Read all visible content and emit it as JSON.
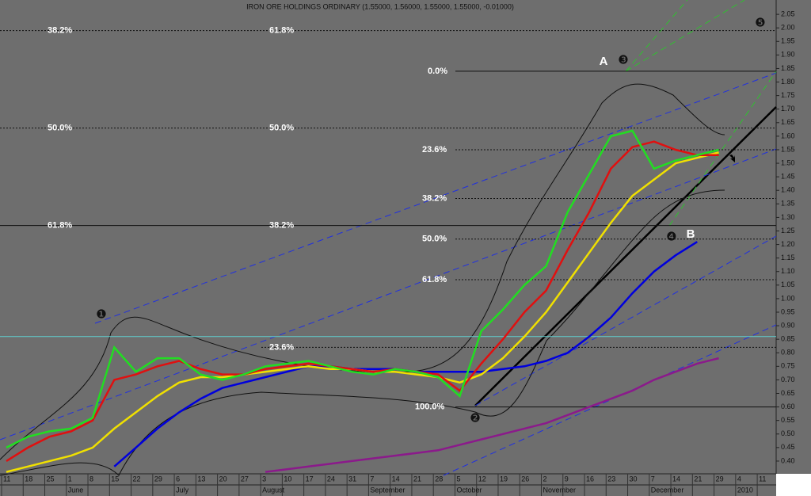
{
  "chart_data": {
    "type": "line",
    "title": "IRON ORE HOLDINGS ORDINARY (1.55000, 1.56000, 1.55000, 1.55000, -0.01000)",
    "categories": [
      "11",
      "18",
      "25",
      "1",
      "8",
      "15",
      "22",
      "29",
      "6",
      "13",
      "20",
      "27",
      "3",
      "10",
      "17",
      "24",
      "31",
      "7",
      "14",
      "21",
      "28",
      "5",
      "12",
      "19",
      "26",
      "2",
      "9",
      "16",
      "23",
      "30",
      "7",
      "14",
      "21",
      "29",
      "4",
      "11"
    ],
    "x_groups": [
      {
        "label": "June",
        "start": 3
      },
      {
        "label": "July",
        "start": 8
      },
      {
        "label": "August",
        "start": 12
      },
      {
        "label": "September",
        "start": 17
      },
      {
        "label": "October",
        "start": 21
      },
      {
        "label": "November",
        "start": 25
      },
      {
        "label": "December",
        "start": 30
      },
      {
        "label": "2010",
        "start": 34
      }
    ],
    "series": [
      {
        "color": "#000080",
        "values": [
          null,
          null,
          null,
          null,
          null,
          0.38,
          0.45,
          0.52,
          0.58,
          0.63,
          0.67,
          0.69,
          0.71,
          0.73,
          0.75,
          0.75,
          0.74,
          0.74,
          0.74,
          0.73,
          0.73,
          0.73,
          0.73,
          0.74,
          0.75,
          0.77,
          0.8,
          0.86,
          0.93,
          1.02,
          1.1,
          1.16,
          1.21,
          null,
          null,
          null
        ]
      },
      {
        "color": "#0000dd",
        "values": [
          null,
          null,
          null,
          null,
          null,
          0.38,
          0.45,
          0.52,
          0.58,
          0.63,
          0.67,
          0.69,
          0.71,
          0.73,
          0.75,
          0.75,
          0.74,
          0.74,
          0.74,
          0.73,
          0.73,
          0.73,
          0.73,
          0.74,
          0.75,
          0.77,
          0.8,
          0.86,
          0.93,
          1.02,
          1.1,
          1.16,
          1.21,
          null,
          null,
          null
        ]
      },
      {
        "color": "#8b1a8b",
        "values": [
          null,
          null,
          null,
          null,
          null,
          null,
          null,
          null,
          null,
          null,
          null,
          null,
          0.36,
          0.37,
          0.38,
          0.39,
          0.4,
          0.41,
          0.42,
          0.43,
          0.44,
          0.46,
          0.48,
          0.5,
          0.52,
          0.54,
          0.57,
          0.6,
          0.63,
          0.66,
          0.7,
          0.73,
          0.76,
          0.78,
          null,
          null
        ]
      },
      {
        "color": "#f0e000",
        "values": [
          0.36,
          0.38,
          0.4,
          0.42,
          0.45,
          0.52,
          0.58,
          0.64,
          0.69,
          0.71,
          0.71,
          0.72,
          0.73,
          0.74,
          0.75,
          0.74,
          0.74,
          0.73,
          0.73,
          0.72,
          0.71,
          0.69,
          0.72,
          0.78,
          0.86,
          0.95,
          1.06,
          1.17,
          1.28,
          1.38,
          1.44,
          1.5,
          1.52,
          1.54,
          null,
          null
        ]
      },
      {
        "color": "#e01010",
        "values": [
          0.4,
          0.45,
          0.49,
          0.51,
          0.55,
          0.7,
          0.72,
          0.75,
          0.77,
          0.74,
          0.72,
          0.72,
          0.74,
          0.75,
          0.76,
          0.75,
          0.74,
          0.73,
          0.74,
          0.73,
          0.72,
          0.66,
          0.76,
          0.85,
          0.95,
          1.03,
          1.18,
          1.32,
          1.48,
          1.56,
          1.58,
          1.55,
          1.53,
          1.53,
          null,
          null
        ]
      },
      {
        "color": "#22dd22",
        "values": [
          0.45,
          0.49,
          0.51,
          0.52,
          0.56,
          0.82,
          0.73,
          0.78,
          0.78,
          0.72,
          0.7,
          0.72,
          0.75,
          0.76,
          0.77,
          0.75,
          0.73,
          0.72,
          0.74,
          0.73,
          0.71,
          0.64,
          0.88,
          0.96,
          1.05,
          1.12,
          1.32,
          1.46,
          1.6,
          1.62,
          1.48,
          1.51,
          1.53,
          1.55,
          null,
          null
        ]
      }
    ],
    "ylim": [
      0.353,
      2.103
    ],
    "yticks": [
      {
        "value": 0.4,
        "label": "0.40"
      },
      0.45,
      {
        "value": 0.5,
        "label": "0.50"
      },
      0.55,
      {
        "value": 0.6,
        "label": "0.60"
      },
      0.65,
      {
        "value": 0.7,
        "label": "0.70"
      },
      0.75,
      {
        "value": 0.8,
        "label": "0.80"
      },
      0.85,
      {
        "value": 0.9,
        "label": "0.90"
      },
      0.95,
      {
        "value": 1,
        "label": "1.00"
      },
      1.05,
      {
        "value": 1.1,
        "label": "1.10"
      },
      1.15,
      {
        "value": 1.2,
        "label": "1.20"
      },
      1.25,
      {
        "value": 1.3,
        "label": "1.30"
      },
      1.35,
      {
        "value": 1.4,
        "label": "1.40"
      },
      1.45,
      {
        "value": 1.5,
        "label": "1.50"
      },
      1.55,
      {
        "value": 1.6,
        "label": "1.60"
      },
      1.65,
      {
        "value": 1.7,
        "label": "1.70"
      },
      1.75,
      {
        "value": 1.8,
        "label": "1.80"
      },
      1.85,
      {
        "value": 1.9,
        "label": "1.90"
      },
      1.95,
      {
        "value": 2,
        "label": "2.00"
      },
      2.05
    ],
    "levels": [
      {
        "value": 1.99,
        "style": "dotted",
        "labels": [
          "38.2%",
          "61.8%"
        ]
      },
      {
        "value": 1.84,
        "style": "solid",
        "labels": [
          "0.0%"
        ]
      },
      {
        "value": 1.63,
        "style": "dotted",
        "labels": [
          "50.0%",
          "50.0%"
        ]
      },
      {
        "value": 1.55,
        "style": "dotted",
        "labels": [
          "23.6%"
        ]
      },
      {
        "value": 1.37,
        "style": "dotted",
        "labels": [
          "38.2%"
        ]
      },
      {
        "value": 1.27,
        "style": "solid",
        "labels": [
          "61.8%",
          "38.2%"
        ]
      },
      {
        "value": 1.22,
        "style": "dotted",
        "labels": [
          "50.0%"
        ]
      },
      {
        "value": 1.07,
        "style": "dotted",
        "labels": [
          "61.8%"
        ]
      },
      {
        "value": 0.82,
        "style": "dotted",
        "labels": [
          "23.6%"
        ]
      },
      {
        "value": 0.6,
        "style": "solid",
        "labels": [
          "100.0%"
        ]
      }
    ],
    "reference_line": {
      "value": 0.86,
      "color": "#5fd0d0"
    },
    "annotations": [
      "A",
      "❸",
      "B",
      "❹",
      "❶",
      "❷",
      "❺"
    ]
  }
}
